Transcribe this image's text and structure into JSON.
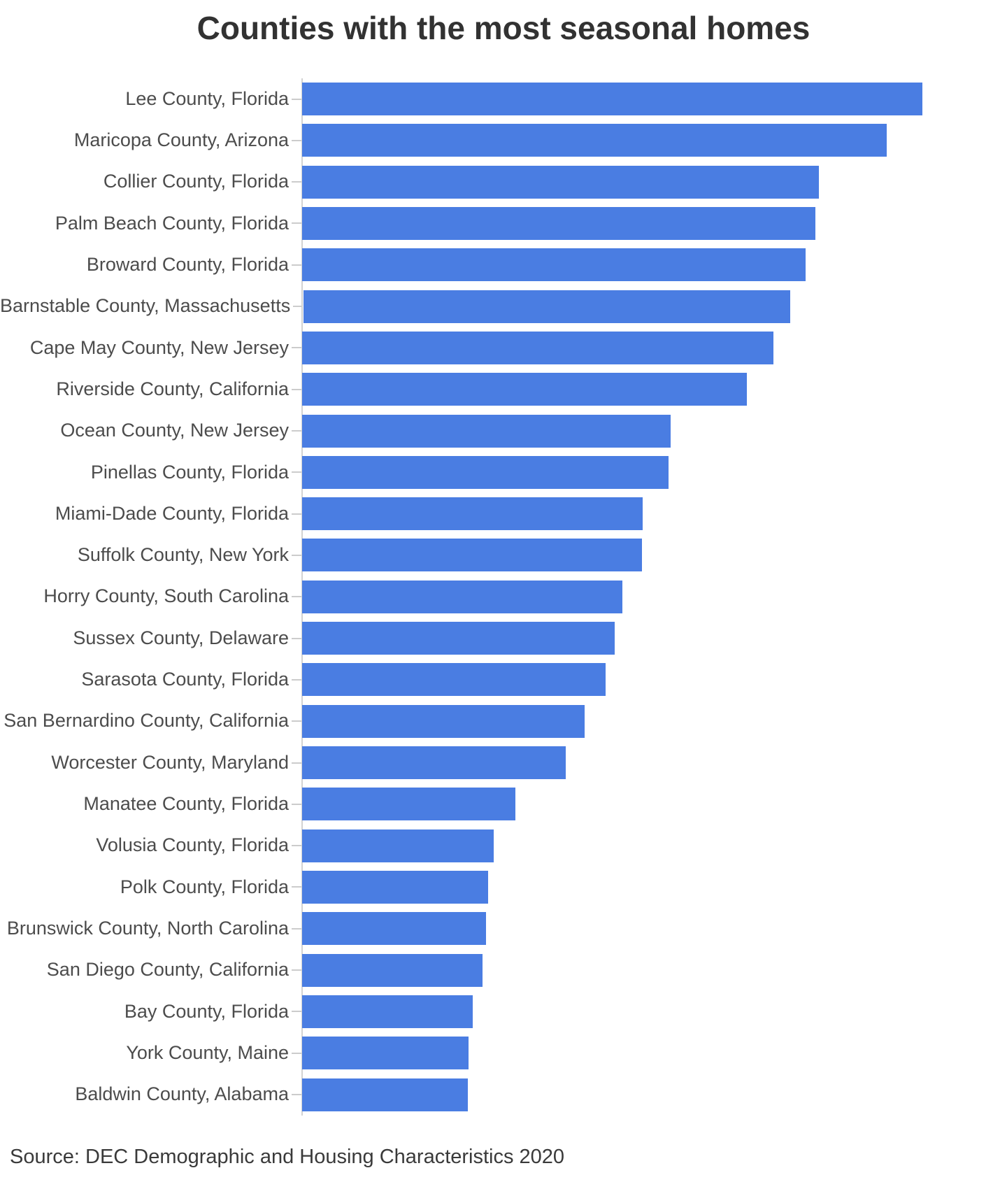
{
  "page": {
    "title": "Counties with the most seasonal homes",
    "source_note": "Source: DEC Demographic and Housing Characteristics 2020"
  },
  "colors": {
    "background": "#ffffff",
    "bar": "#4a7de2",
    "title_text": "#323232",
    "label_text": "#4c4c4c",
    "source_text": "#3a3a3a",
    "axis_line": "#d2d2d2",
    "tick": "#cccccc"
  },
  "chart_data": {
    "type": "bar",
    "orientation": "horizontal",
    "title": "Counties with the most seasonal homes",
    "categories": [
      "Lee County, Florida",
      "Maricopa County, Arizona",
      "Collier County, Florida",
      "Palm Beach County, Florida",
      "Broward County, Florida",
      "Barnstable County, Massachusetts",
      "Cape May County, New Jersey",
      "Riverside County, California",
      "Ocean County, New Jersey",
      "Pinellas County, Florida",
      "Miami-Dade County, Florida",
      "Suffolk County, New York",
      "Horry County, South Carolina",
      "Sussex County, Delaware",
      "Sarasota County, Florida",
      "San Bernardino County, California",
      "Worcester County, Maryland",
      "Manatee County, Florida",
      "Volusia County, Florida",
      "Polk County, Florida",
      "Brunswick County, North Carolina",
      "San Diego County, California",
      "Bay County, Florida",
      "York County, Maine",
      "Baldwin County, Alabama"
    ],
    "values": [
      100,
      94.3,
      83.3,
      82.8,
      81.2,
      78.5,
      76.0,
      71.7,
      59.4,
      59.1,
      54.9,
      54.8,
      51.6,
      50.4,
      48.9,
      45.5,
      42.5,
      34.4,
      30.9,
      30.0,
      29.7,
      29.1,
      27.5,
      26.8,
      26.7
    ],
    "value_unit": "percent of longest bar (chart shows no numeric axis or data labels)",
    "xlim": [
      0,
      100
    ],
    "grid": false,
    "legend": false,
    "value_labels_shown": false,
    "axis_ticks_shown": false,
    "source": "Source: DEC Demographic and Housing Characteristics 2020"
  }
}
